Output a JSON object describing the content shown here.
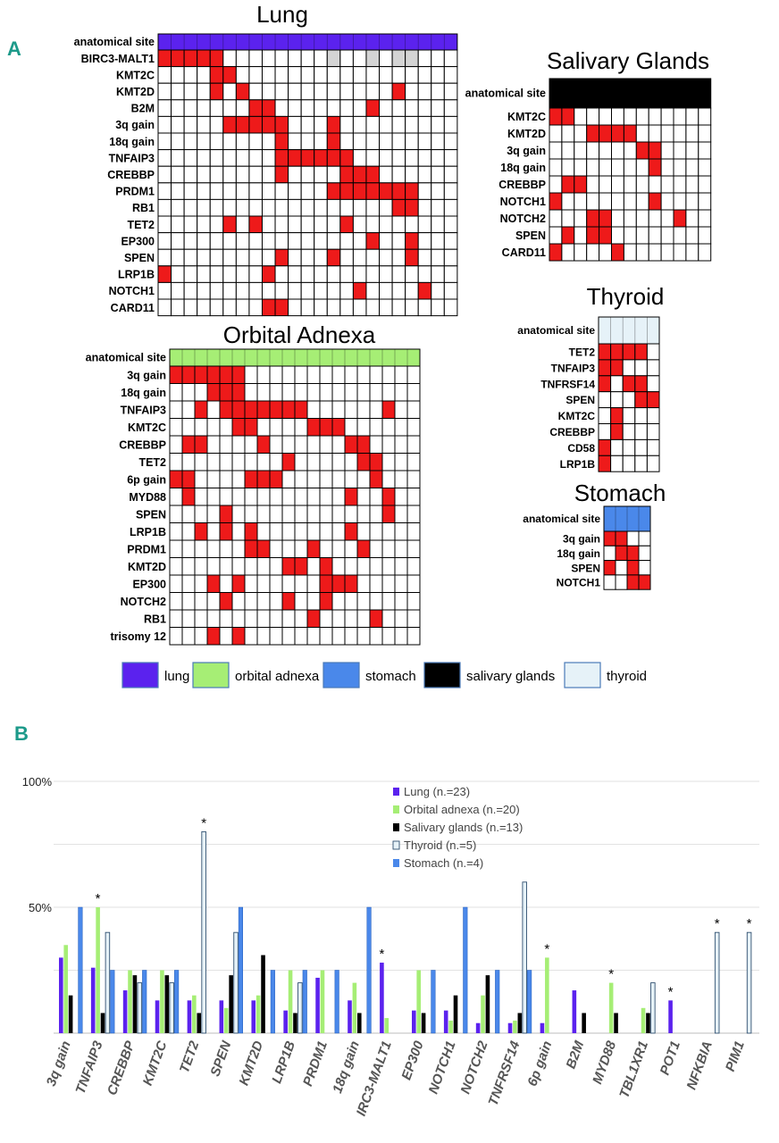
{
  "panel_labels": {
    "a": "A",
    "b": "B"
  },
  "colors": {
    "lung": "#5b22ee",
    "orbital": "#a6ee75",
    "stomach": "#4a88ea",
    "salivary": "#000000",
    "thyroid": "#e6f2f8",
    "mutation": "#ee1a1a",
    "unknown": "#d4d4d4",
    "grid": "#000000"
  },
  "chart_data": [
    {
      "type": "heatmap",
      "title": "Lung",
      "site": "lung",
      "header_label": "anatomical site",
      "n_cases": 23,
      "rows": [
        {
          "label": "BIRC3-MALT1",
          "hits": [
            0,
            1,
            2,
            3,
            4
          ],
          "unknown": [
            13,
            16,
            18,
            19
          ]
        },
        {
          "label": "KMT2C",
          "hits": [
            4,
            5
          ]
        },
        {
          "label": "KMT2D",
          "hits": [
            4,
            6,
            18
          ]
        },
        {
          "label": "B2M",
          "hits": [
            7,
            8,
            16
          ]
        },
        {
          "label": "3q gain",
          "hits": [
            5,
            6,
            7,
            8,
            9,
            13
          ]
        },
        {
          "label": "18q gain",
          "hits": [
            9,
            13
          ]
        },
        {
          "label": "TNFAIP3",
          "hits": [
            9,
            10,
            11,
            12,
            13,
            14
          ]
        },
        {
          "label": "CREBBP",
          "hits": [
            9,
            14,
            15,
            16
          ]
        },
        {
          "label": "PRDM1",
          "hits": [
            13,
            14,
            15,
            16,
            17,
            18,
            19
          ]
        },
        {
          "label": "RB1",
          "hits": [
            18,
            19
          ]
        },
        {
          "label": "TET2",
          "hits": [
            5,
            7,
            14
          ]
        },
        {
          "label": "EP300",
          "hits": [
            16,
            19
          ]
        },
        {
          "label": "SPEN",
          "hits": [
            9,
            13,
            19
          ]
        },
        {
          "label": "LRP1B",
          "hits": [
            0,
            8
          ]
        },
        {
          "label": "NOTCH1",
          "hits": [
            15,
            20
          ]
        },
        {
          "label": "CARD11",
          "hits": [
            8,
            9
          ]
        }
      ]
    },
    {
      "type": "heatmap",
      "title": "Orbital Adnexa",
      "site": "orbital",
      "header_label": "anatomical site",
      "n_cases": 20,
      "rows": [
        {
          "label": "3q gain",
          "hits": [
            0,
            1,
            2,
            3,
            4,
            5
          ]
        },
        {
          "label": "18q gain",
          "hits": [
            3,
            4,
            5
          ]
        },
        {
          "label": "TNFAIP3",
          "hits": [
            2,
            4,
            5,
            6,
            7,
            8,
            9,
            10,
            17
          ]
        },
        {
          "label": "KMT2C",
          "hits": [
            5,
            6,
            11,
            12,
            13
          ]
        },
        {
          "label": "CREBBP",
          "hits": [
            1,
            2,
            7,
            14,
            15
          ]
        },
        {
          "label": "TET2",
          "hits": [
            9,
            15,
            16
          ]
        },
        {
          "label": "6p gain",
          "hits": [
            0,
            1,
            6,
            7,
            8,
            16
          ]
        },
        {
          "label": "MYD88",
          "hits": [
            1,
            14,
            17
          ]
        },
        {
          "label": "SPEN",
          "hits": [
            4,
            17
          ]
        },
        {
          "label": "LRP1B",
          "hits": [
            2,
            4,
            6,
            14
          ]
        },
        {
          "label": "PRDM1",
          "hits": [
            6,
            7,
            11,
            15
          ]
        },
        {
          "label": "KMT2D",
          "hits": [
            9,
            10,
            12
          ]
        },
        {
          "label": "EP300",
          "hits": [
            3,
            5,
            12,
            13,
            14
          ]
        },
        {
          "label": "NOTCH2",
          "hits": [
            4,
            9,
            12
          ]
        },
        {
          "label": "RB1",
          "hits": [
            11,
            16
          ]
        },
        {
          "label": "trisomy 12",
          "hits": [
            3,
            5
          ]
        }
      ]
    },
    {
      "type": "heatmap",
      "title": "Salivary Glands",
      "site": "salivary",
      "header_label": "anatomical site",
      "n_cases": 13,
      "rows": [
        {
          "label": "KMT2C",
          "hits": [
            0,
            1
          ]
        },
        {
          "label": "KMT2D",
          "hits": [
            3,
            4,
            5,
            6
          ]
        },
        {
          "label": "3q gain",
          "hits": [
            7,
            8
          ]
        },
        {
          "label": "18q gain",
          "hits": [
            8
          ]
        },
        {
          "label": "CREBBP",
          "hits": [
            1,
            2
          ]
        },
        {
          "label": "NOTCH1",
          "hits": [
            0,
            8
          ]
        },
        {
          "label": "NOTCH2",
          "hits": [
            3,
            4,
            10
          ]
        },
        {
          "label": "SPEN",
          "hits": [
            1,
            3,
            4
          ]
        },
        {
          "label": "CARD11",
          "hits": [
            0,
            5
          ]
        }
      ]
    },
    {
      "type": "heatmap",
      "title": "Thyroid",
      "site": "thyroid",
      "header_label": "anatomical site",
      "n_cases": 5,
      "rows": [
        {
          "label": "TET2",
          "hits": [
            0,
            1,
            2,
            3
          ]
        },
        {
          "label": "TNFAIP3",
          "hits": [
            0,
            1
          ]
        },
        {
          "label": "TNFRSF14",
          "hits": [
            0,
            2,
            3
          ]
        },
        {
          "label": "SPEN",
          "hits": [
            3,
            4
          ]
        },
        {
          "label": "KMT2C",
          "hits": [
            1
          ]
        },
        {
          "label": "CREBBP",
          "hits": [
            1
          ]
        },
        {
          "label": "CD58",
          "hits": [
            0
          ]
        },
        {
          "label": "LRP1B",
          "hits": [
            0
          ]
        }
      ]
    },
    {
      "type": "heatmap",
      "title": "Stomach",
      "site": "stomach",
      "header_label": "anatomical site",
      "n_cases": 4,
      "rows": [
        {
          "label": "3q gain",
          "hits": [
            0,
            1
          ]
        },
        {
          "label": "18q gain",
          "hits": [
            1,
            2
          ]
        },
        {
          "label": "SPEN",
          "hits": [
            0,
            2
          ]
        },
        {
          "label": "NOTCH1",
          "hits": [
            2,
            3
          ]
        }
      ]
    },
    {
      "type": "bar",
      "title": "",
      "ylabel": "",
      "xlabel": "",
      "ylim": [
        0,
        100
      ],
      "yticks": [
        "100%",
        "50%"
      ],
      "ytick_values": [
        100,
        50
      ],
      "categories": [
        "3q gain",
        "TNFAIP3",
        "CREBBP",
        "KMT2C",
        "TET2",
        "SPEN",
        "KMT2D",
        "LRP1B",
        "PRDM1",
        "18q gain",
        "IRC3-MALT1",
        "EP300",
        "NOTCH1",
        "NOTCH2",
        "TNFRSF14",
        "6p gain",
        "B2M",
        "MYD88",
        "TBL1XR1",
        "POT1",
        "NFKBIA",
        "PIM1"
      ],
      "series": [
        {
          "name": "Lung (n.=23)",
          "site": "lung",
          "values": [
            30,
            26,
            17,
            13,
            13,
            13,
            13,
            9,
            22,
            13,
            28,
            9,
            9,
            4,
            4,
            4,
            17,
            0,
            0,
            13,
            0,
            0
          ]
        },
        {
          "name": "Orbital adnexa (n.=20)",
          "site": "orbital",
          "values": [
            35,
            50,
            25,
            25,
            15,
            10,
            15,
            25,
            25,
            20,
            6,
            25,
            5,
            15,
            5,
            30,
            0,
            20,
            10,
            0,
            0,
            0
          ]
        },
        {
          "name": "Salivary glands (n.=13)",
          "site": "salivary",
          "values": [
            15,
            8,
            23,
            23,
            8,
            23,
            31,
            8,
            0,
            8,
            0,
            8,
            15,
            23,
            8,
            0,
            8,
            8,
            8,
            0,
            0,
            0
          ]
        },
        {
          "name": "Thyroid (n.=5)",
          "site": "thyroid",
          "values": [
            0,
            40,
            20,
            20,
            80,
            40,
            0,
            20,
            0,
            0,
            0,
            0,
            0,
            0,
            60,
            0,
            0,
            0,
            20,
            0,
            40,
            40
          ]
        },
        {
          "name": "Stomach  (n.=4)",
          "site": "stomach",
          "values": [
            50,
            25,
            25,
            25,
            0,
            50,
            25,
            25,
            25,
            50,
            0,
            25,
            50,
            25,
            25,
            0,
            0,
            0,
            0,
            0,
            0,
            0
          ]
        }
      ],
      "significance": [
        {
          "category": "TNFAIP3",
          "series": 1,
          "mark": "*"
        },
        {
          "category": "TET2",
          "series": 3,
          "mark": "*"
        },
        {
          "category": "IRC3-MALT1",
          "series": 0,
          "mark": "*"
        },
        {
          "category": "6p gain",
          "series": 1,
          "mark": "*"
        },
        {
          "category": "MYD88",
          "series": 1,
          "mark": "*"
        },
        {
          "category": "POT1",
          "series": 0,
          "mark": "*"
        },
        {
          "category": "NFKBIA",
          "series": 3,
          "mark": "*"
        },
        {
          "category": "PIM1",
          "series": 3,
          "mark": "*"
        }
      ]
    }
  ],
  "legend_sites": [
    {
      "site": "lung",
      "label": "lung"
    },
    {
      "site": "orbital",
      "label": "orbital adnexa"
    },
    {
      "site": "stomach",
      "label": "stomach"
    },
    {
      "site": "salivary",
      "label": "salivary glands"
    },
    {
      "site": "thyroid",
      "label": "thyroid"
    }
  ]
}
